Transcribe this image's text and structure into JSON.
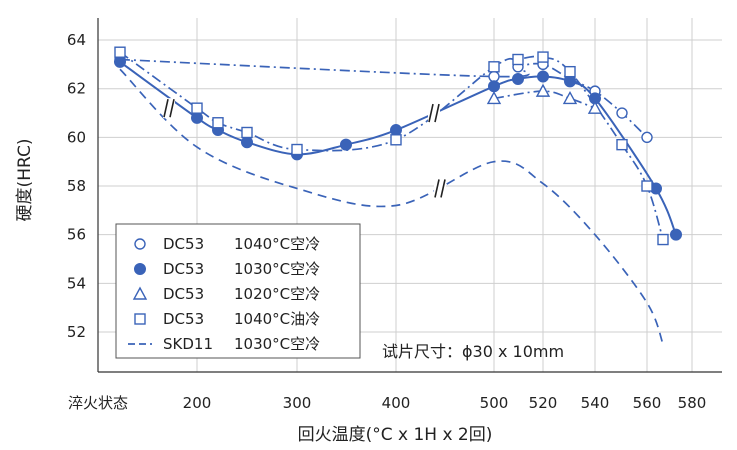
{
  "chart_data": {
    "type": "line",
    "ylabel": "硬度(HRC)",
    "xlabel": "回火温度(°C x 1H x 2回)",
    "ylim": [
      51,
      65
    ],
    "yticks": [
      52,
      54,
      56,
      58,
      60,
      62,
      64
    ],
    "xticks": [
      "淬火状态",
      "200",
      "300",
      "400",
      "500",
      "520",
      "540",
      "560",
      "580"
    ],
    "annotation": "试片尺寸：ϕ30 x 10mm",
    "colors": {
      "series": "#3a63b8",
      "axis": "#333333"
    },
    "legend": [
      {
        "marker": "circle-open",
        "dc": "DC53",
        "cond": "1040°C空冷"
      },
      {
        "marker": "circle-filled",
        "dc": "DC53",
        "cond": "1030°C空冷"
      },
      {
        "marker": "triangle-open",
        "dc": "DC53",
        "cond": "1020°C空冷"
      },
      {
        "marker": "square-open",
        "dc": "DC53",
        "cond": "1040°C油冷"
      },
      {
        "marker": "dash-line",
        "dc": "SKD11",
        "cond": "1030°C空冷"
      }
    ],
    "series": [
      {
        "name": "DC53 1040°C空冷",
        "marker": "circle-open",
        "line": "dashdot",
        "x": [
          "淬火状态",
          "500",
          "510",
          "520",
          "530",
          "540",
          "550",
          "560"
        ],
        "y": [
          63.2,
          62.5,
          62.9,
          63.0,
          62.4,
          61.9,
          61.0,
          60.0
        ]
      },
      {
        "name": "DC53 1030°C空冷",
        "marker": "circle-filled",
        "line": "solid",
        "x": [
          "淬火状态",
          "200",
          "220",
          "250",
          "300",
          "350",
          "400",
          "500",
          "510",
          "520",
          "530",
          "540",
          "565",
          "575"
        ],
        "y": [
          63.1,
          60.8,
          60.3,
          59.8,
          59.3,
          59.7,
          60.3,
          62.1,
          62.4,
          62.5,
          62.3,
          61.6,
          57.9,
          56.0
        ]
      },
      {
        "name": "DC53 1020°C空冷",
        "marker": "triangle-open",
        "line": "dashdot",
        "x": [
          "500",
          "520",
          "530",
          "540"
        ],
        "y": [
          61.6,
          61.9,
          61.6,
          61.2
        ]
      },
      {
        "name": "DC53 1040°C油冷",
        "marker": "square-open",
        "line": "dashdot",
        "x": [
          "淬火状态",
          "200",
          "220",
          "250",
          "300",
          "400",
          "500",
          "510",
          "520",
          "530",
          "550",
          "560",
          "570"
        ],
        "y": [
          63.5,
          61.2,
          60.6,
          60.2,
          59.5,
          59.9,
          62.9,
          63.2,
          63.3,
          62.7,
          59.7,
          58.0,
          55.8
        ]
      },
      {
        "name": "SKD11 1030°C空冷",
        "marker": "none",
        "line": "dashed",
        "x": [
          "淬火状态",
          "200",
          "300",
          "400",
          "500",
          "520",
          "540",
          "560",
          "570"
        ],
        "y": [
          62.8,
          59.6,
          57.9,
          57.2,
          59.0,
          58.1,
          56.0,
          53.2,
          51.5
        ]
      }
    ]
  }
}
